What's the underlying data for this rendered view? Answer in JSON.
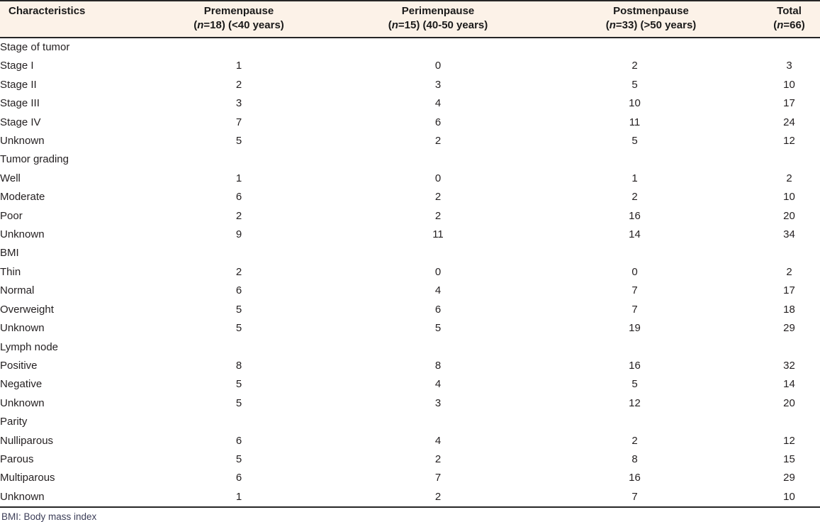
{
  "table": {
    "header": {
      "characteristics": "Characteristics",
      "columns": [
        {
          "title": "Premenpause",
          "open_paren": "(",
          "n": "n",
          "after_n": "=18) (<40 years)"
        },
        {
          "title": "Perimenpause",
          "open_paren": "(",
          "n": "n",
          "after_n": "=15) (40-50 years)"
        },
        {
          "title": "Postmenpause",
          "open_paren": "(",
          "n": "n",
          "after_n": "=33) (>50 years)"
        },
        {
          "title": "Total",
          "open_paren": "(",
          "n": "n",
          "after_n": "=66)"
        }
      ]
    },
    "sections": [
      {
        "label": "Stage of tumor",
        "rows": [
          {
            "label": "Stage I",
            "values": [
              "1",
              "0",
              "2",
              "3"
            ]
          },
          {
            "label": "Stage II",
            "values": [
              "2",
              "3",
              "5",
              "10"
            ]
          },
          {
            "label": "Stage III",
            "values": [
              "3",
              "4",
              "10",
              "17"
            ]
          },
          {
            "label": "Stage IV",
            "values": [
              "7",
              "6",
              "11",
              "24"
            ]
          },
          {
            "label": "Unknown",
            "values": [
              "5",
              "2",
              "5",
              "12"
            ]
          }
        ]
      },
      {
        "label": "Tumor grading",
        "rows": [
          {
            "label": "Well",
            "values": [
              "1",
              "0",
              "1",
              "2"
            ]
          },
          {
            "label": "Moderate",
            "values": [
              "6",
              "2",
              "2",
              "10"
            ]
          },
          {
            "label": "Poor",
            "values": [
              "2",
              "2",
              "16",
              "20"
            ]
          },
          {
            "label": "Unknown",
            "values": [
              "9",
              "11",
              "14",
              "34"
            ]
          }
        ]
      },
      {
        "label": "BMI",
        "rows": [
          {
            "label": "Thin",
            "values": [
              "2",
              "0",
              "0",
              "2"
            ]
          },
          {
            "label": "Normal",
            "values": [
              "6",
              "4",
              "7",
              "17"
            ]
          },
          {
            "label": "Overweight",
            "values": [
              "5",
              "6",
              "7",
              "18"
            ]
          },
          {
            "label": "Unknown",
            "values": [
              "5",
              "5",
              "19",
              "29"
            ]
          }
        ]
      },
      {
        "label": "Lymph node",
        "rows": [
          {
            "label": "Positive",
            "values": [
              "8",
              "8",
              "16",
              "32"
            ]
          },
          {
            "label": "Negative",
            "values": [
              "5",
              "4",
              "5",
              "14"
            ]
          },
          {
            "label": "Unknown",
            "values": [
              "5",
              "3",
              "12",
              "20"
            ]
          }
        ]
      },
      {
        "label": "Parity",
        "rows": [
          {
            "label": "Nulliparous",
            "values": [
              "6",
              "4",
              "2",
              "12"
            ]
          },
          {
            "label": "Parous",
            "values": [
              "5",
              "2",
              "8",
              "15"
            ]
          },
          {
            "label": "Multiparous",
            "values": [
              "6",
              "7",
              "16",
              "29"
            ]
          },
          {
            "label": "Unknown",
            "values": [
              "1",
              "2",
              "7",
              "10"
            ]
          }
        ]
      }
    ],
    "footnote": "BMI: Body mass index"
  },
  "colors": {
    "header_bg": "#fcf2e8",
    "rule": "#262626",
    "text": "#231f20",
    "footnote_text": "#3c3e58"
  }
}
